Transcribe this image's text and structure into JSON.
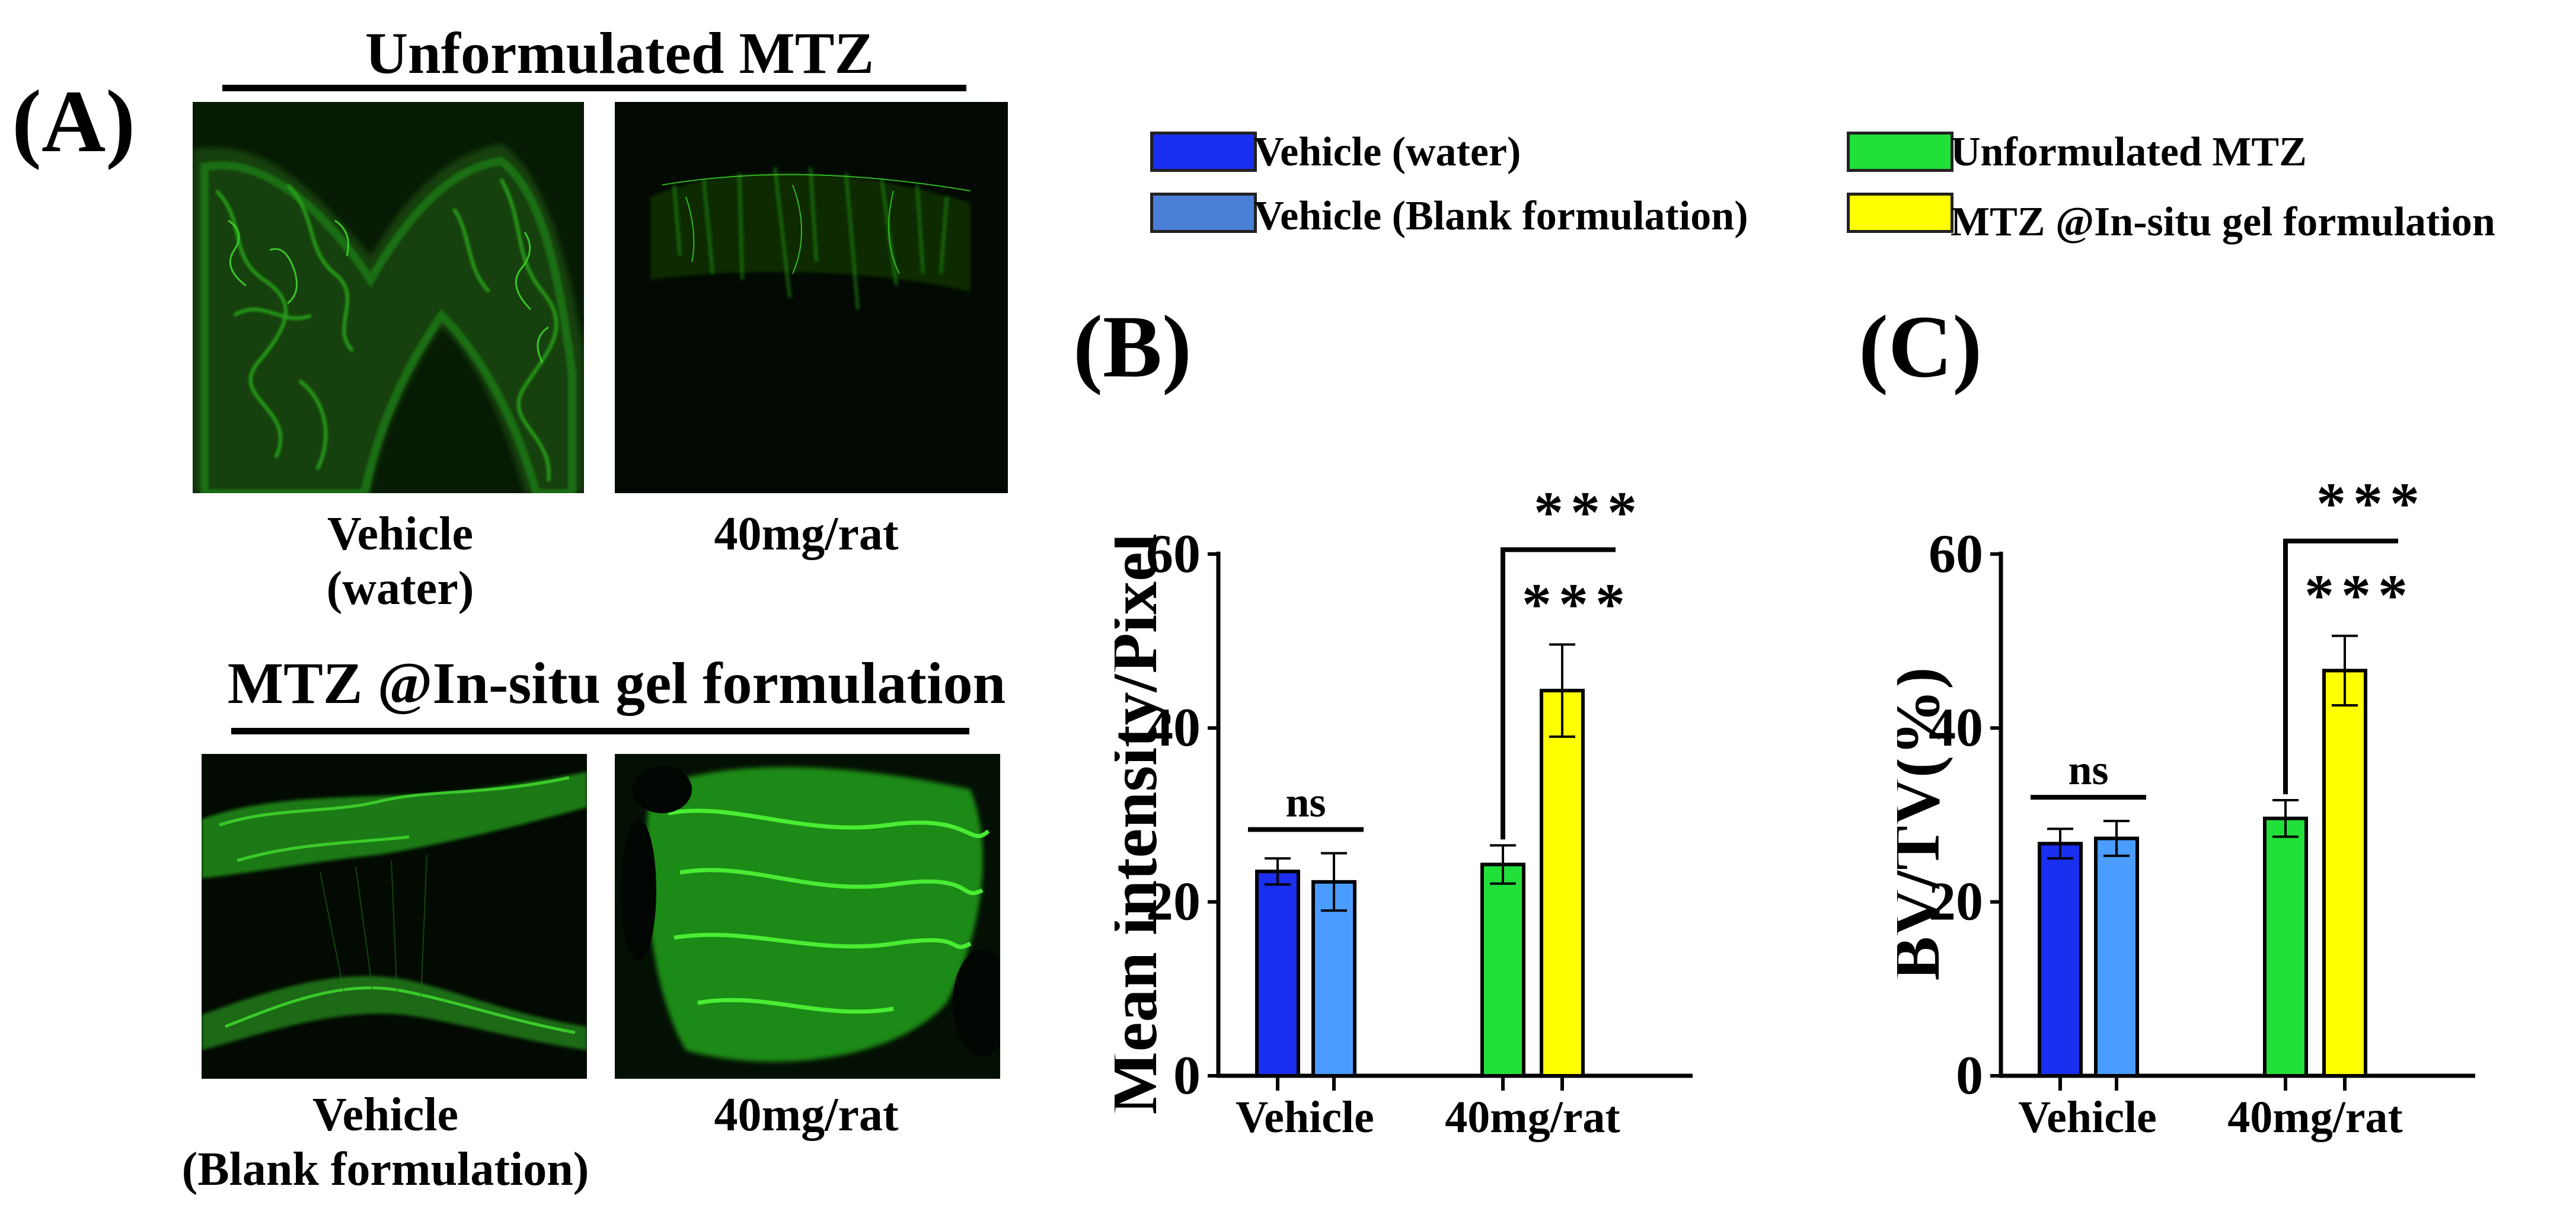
{
  "panel_a": {
    "letter": "(A)",
    "top_group": {
      "title": "Unformulated MTZ",
      "left_label": "Vehicle\n(water)",
      "right_label": "40mg/rat"
    },
    "bottom_group": {
      "title": "MTZ @In-situ gel formulation",
      "left_label": "Vehicle\n(Blank formulation)",
      "right_label": "40mg/rat"
    }
  },
  "legend": {
    "items": [
      {
        "label": "Vehicle (water)",
        "color": "#1a2ff0"
      },
      {
        "label": "Vehicle (Blank formulation)",
        "color": "#4a7fd6"
      },
      {
        "label": "Unformulated MTZ",
        "color": "#22e03a"
      },
      {
        "label": "MTZ @In-situ gel formulation",
        "color": "#ffff00"
      }
    ]
  },
  "chart_data": [
    {
      "panel": "(B)",
      "type": "bar",
      "ylabel": "Mean intensity/Pixel",
      "xlabel": "",
      "ylim": [
        0,
        60
      ],
      "yticks": [
        0,
        20,
        40,
        60
      ],
      "categories": [
        "Vehicle",
        "40mg/rat"
      ],
      "series": [
        {
          "name": "Vehicle (water) / Unformulated MTZ",
          "values": [
            23.5,
            24.3
          ],
          "errors": [
            1.5,
            2.2
          ],
          "colors": [
            "#1a2ff0",
            "#22e03a"
          ]
        },
        {
          "name": "Vehicle (Blank formulation) / MTZ @In-situ gel formulation",
          "values": [
            22.3,
            44.3
          ],
          "errors": [
            3.3,
            5.3
          ],
          "colors": [
            "#4a9cff",
            "#ffff00"
          ]
        }
      ],
      "annotations": [
        {
          "group": "Vehicle",
          "text": "ns"
        },
        {
          "group": "40mg/rat",
          "text": "***",
          "level": "upper"
        },
        {
          "group": "40mg/rat",
          "text": "***",
          "level": "lower"
        }
      ]
    },
    {
      "panel": "(C)",
      "type": "bar",
      "ylabel": "BV/TV(%)",
      "xlabel": "",
      "ylim": [
        0,
        60
      ],
      "yticks": [
        0,
        20,
        40,
        60
      ],
      "categories": [
        "Vehicle",
        "40mg/rat"
      ],
      "series": [
        {
          "name": "Vehicle (water) / Unformulated MTZ",
          "values": [
            26.7,
            29.6
          ],
          "errors": [
            1.7,
            2.1
          ],
          "colors": [
            "#1a2ff0",
            "#22e03a"
          ]
        },
        {
          "name": "Vehicle (Blank formulation) / MTZ @In-situ gel formulation",
          "values": [
            27.3,
            46.6
          ],
          "errors": [
            2.0,
            4.0
          ],
          "colors": [
            "#4a9cff",
            "#ffff00"
          ]
        }
      ],
      "annotations": [
        {
          "group": "Vehicle",
          "text": "ns"
        },
        {
          "group": "40mg/rat",
          "text": "***",
          "level": "upper"
        },
        {
          "group": "40mg/rat",
          "text": "***",
          "level": "lower"
        }
      ]
    }
  ]
}
